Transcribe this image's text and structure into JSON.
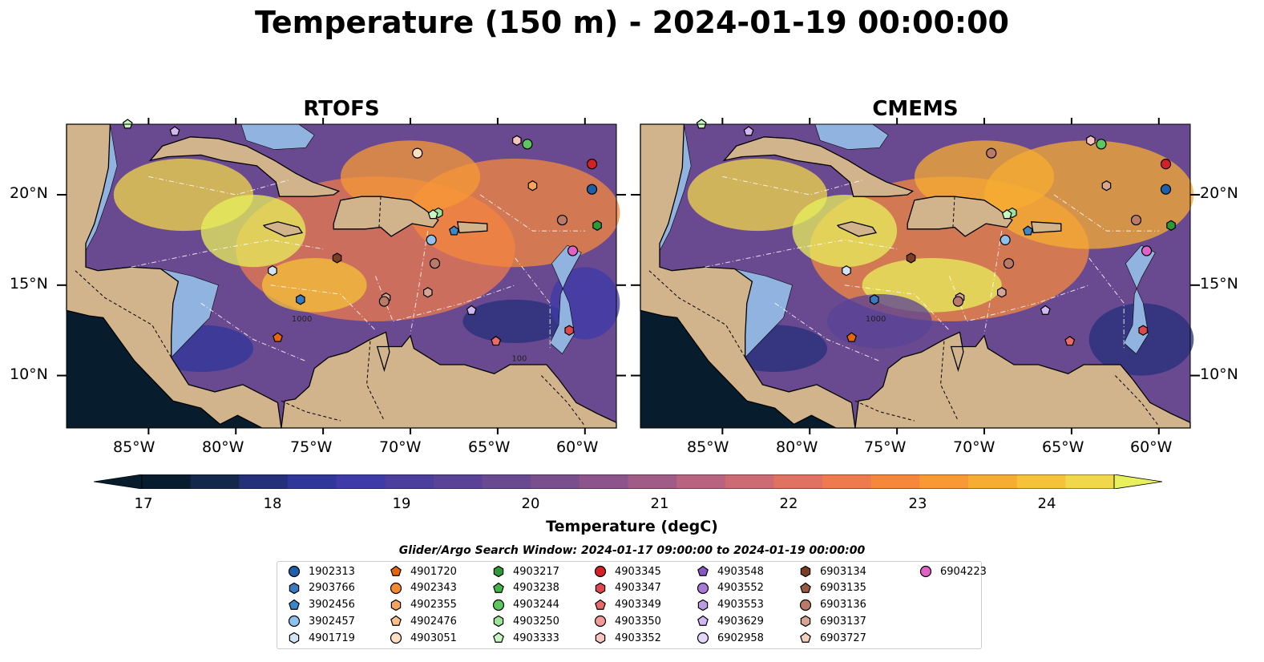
{
  "title": "Temperature (150 m) - 2024-01-19 00:00:00",
  "panels": [
    {
      "title": "RTOFS"
    },
    {
      "title": "CMEMS"
    }
  ],
  "lat_ticks": [
    "20°N",
    "15°N",
    "10°N"
  ],
  "lon_ticks": [
    "85°W",
    "80°W",
    "75°W",
    "70°W",
    "65°W",
    "60°W"
  ],
  "contour_labels": [
    "1000",
    "100"
  ],
  "colorbar": {
    "label": "Temperature (degC)",
    "ticks": [
      "17",
      "18",
      "19",
      "20",
      "21",
      "22",
      "23",
      "24"
    ],
    "range": [
      17,
      24.5
    ],
    "extend": "both",
    "colors": [
      "#071d2e",
      "#13284a",
      "#24307a",
      "#2f379a",
      "#3e3aa8",
      "#4c3e9c",
      "#5a4396",
      "#694a90",
      "#7a4f8e",
      "#8c548a",
      "#a05c86",
      "#b86480",
      "#cc6b73",
      "#e07262",
      "#ee7b4e",
      "#f5883d",
      "#f79a35",
      "#f7ad32",
      "#f5c23a",
      "#f1d84a",
      "#e8f05c"
    ]
  },
  "search_window": "Glider/Argo Search Window: 2024-01-17 09:00:00 to 2024-01-19 00:00:00",
  "map_colors": {
    "land": "#d2b48c",
    "shelf": "#91b3e0"
  },
  "floats": [
    {
      "id": "1902313",
      "marker": "circle",
      "color": "#1f5ea8"
    },
    {
      "id": "2903766",
      "marker": "hexagon",
      "color": "#3a7bbf"
    },
    {
      "id": "3902456",
      "marker": "pentagon",
      "color": "#3d86c8"
    },
    {
      "id": "3902457",
      "marker": "circle",
      "color": "#8ec2ec"
    },
    {
      "id": "4901719",
      "marker": "hexagon",
      "color": "#d0e4f6"
    },
    {
      "id": "4901720",
      "marker": "pentagon",
      "color": "#e8650b"
    },
    {
      "id": "4902343",
      "marker": "circle",
      "color": "#f68a2e"
    },
    {
      "id": "4902355",
      "marker": "hexagon",
      "color": "#f9a45c"
    },
    {
      "id": "4902476",
      "marker": "pentagon",
      "color": "#fbbf8a"
    },
    {
      "id": "4903051",
      "marker": "circle",
      "color": "#fde0c0"
    },
    {
      "id": "4903217",
      "marker": "hexagon",
      "color": "#2c9a35"
    },
    {
      "id": "4903238",
      "marker": "pentagon",
      "color": "#43b34a"
    },
    {
      "id": "4903244",
      "marker": "circle",
      "color": "#5cc75f"
    },
    {
      "id": "4903250",
      "marker": "hexagon",
      "color": "#9ee39a"
    },
    {
      "id": "4903333",
      "marker": "pentagon",
      "color": "#c8f5c2"
    },
    {
      "id": "4903345",
      "marker": "circle",
      "color": "#d42126"
    },
    {
      "id": "4903347",
      "marker": "hexagon",
      "color": "#e0474a"
    },
    {
      "id": "4903349",
      "marker": "pentagon",
      "color": "#ea6a6a"
    },
    {
      "id": "4903350",
      "marker": "circle",
      "color": "#f29a98"
    },
    {
      "id": "4903352",
      "marker": "hexagon",
      "color": "#f8c4c2"
    },
    {
      "id": "4903548",
      "marker": "pentagon",
      "color": "#8a55c4"
    },
    {
      "id": "4903552",
      "marker": "circle",
      "color": "#a77ad6"
    },
    {
      "id": "4903553",
      "marker": "hexagon",
      "color": "#bc9be3"
    },
    {
      "id": "4903629",
      "marker": "pentagon",
      "color": "#d2b8f0"
    },
    {
      "id": "6902958",
      "marker": "circle",
      "color": "#e6d6fa"
    },
    {
      "id": "6903134",
      "marker": "hexagon",
      "color": "#7a3e24"
    },
    {
      "id": "6903135",
      "marker": "pentagon",
      "color": "#9c5a44"
    },
    {
      "id": "6903136",
      "marker": "circle",
      "color": "#b97a68"
    },
    {
      "id": "6903137",
      "marker": "hexagon",
      "color": "#d7a693"
    },
    {
      "id": "6903727",
      "marker": "pentagon",
      "color": "#f2d0c0"
    },
    {
      "id": "6904223",
      "marker": "circle",
      "color": "#e062c6"
    }
  ],
  "float_positions": {
    "RTOFS": [
      {
        "id": "4903333",
        "lon": -86.2,
        "lat": 23.9
      },
      {
        "id": "4903629",
        "lon": -83.5,
        "lat": 23.5
      },
      {
        "id": "4903051",
        "lon": -69.6,
        "lat": 22.3
      },
      {
        "id": "4903352",
        "lon": -63.9,
        "lat": 23.0
      },
      {
        "id": "4903244",
        "lon": -63.3,
        "lat": 22.8
      },
      {
        "id": "4902355",
        "lon": -63.0,
        "lat": 20.5
      },
      {
        "id": "4903345",
        "lon": -59.6,
        "lat": 21.7
      },
      {
        "id": "1902313",
        "lon": -59.6,
        "lat": 20.3
      },
      {
        "id": "4903250",
        "lon": -68.4,
        "lat": 19.0
      },
      {
        "id": "4903333",
        "lon": -68.7,
        "lat": 18.9
      },
      {
        "id": "6903136",
        "lon": -61.3,
        "lat": 18.6
      },
      {
        "id": "4903217",
        "lon": -59.3,
        "lat": 18.3
      },
      {
        "id": "3902457",
        "lon": -68.8,
        "lat": 17.5
      },
      {
        "id": "3902456",
        "lon": -67.5,
        "lat": 18.0
      },
      {
        "id": "6904223",
        "lon": -60.7,
        "lat": 16.9
      },
      {
        "id": "6903134",
        "lon": -74.2,
        "lat": 16.5
      },
      {
        "id": "4901719",
        "lon": -77.9,
        "lat": 15.8
      },
      {
        "id": "6903136",
        "lon": -68.6,
        "lat": 16.2
      },
      {
        "id": "6903137",
        "lon": -71.4,
        "lat": 14.3
      },
      {
        "id": "6903136",
        "lon": -71.5,
        "lat": 14.1
      },
      {
        "id": "6903137",
        "lon": -69.0,
        "lat": 14.6
      },
      {
        "id": "2903766",
        "lon": -76.3,
        "lat": 14.2
      },
      {
        "id": "4903629",
        "lon": -66.5,
        "lat": 13.6
      },
      {
        "id": "4901720",
        "lon": -77.6,
        "lat": 12.1
      },
      {
        "id": "4903349",
        "lon": -65.1,
        "lat": 11.9
      },
      {
        "id": "4903347",
        "lon": -60.9,
        "lat": 12.5
      }
    ],
    "CMEMS": [
      {
        "id": "4903333",
        "lon": -86.2,
        "lat": 23.9
      },
      {
        "id": "4903629",
        "lon": -83.5,
        "lat": 23.5
      },
      {
        "id": "6903136",
        "lon": -69.6,
        "lat": 22.3
      },
      {
        "id": "4903352",
        "lon": -63.9,
        "lat": 23.0
      },
      {
        "id": "4903244",
        "lon": -63.3,
        "lat": 22.8
      },
      {
        "id": "6903137",
        "lon": -63.0,
        "lat": 20.5
      },
      {
        "id": "4903345",
        "lon": -59.6,
        "lat": 21.7
      },
      {
        "id": "1902313",
        "lon": -59.6,
        "lat": 20.3
      },
      {
        "id": "4903250",
        "lon": -68.4,
        "lat": 19.0
      },
      {
        "id": "4903333",
        "lon": -68.7,
        "lat": 18.9
      },
      {
        "id": "6903136",
        "lon": -61.3,
        "lat": 18.6
      },
      {
        "id": "4903217",
        "lon": -59.3,
        "lat": 18.3
      },
      {
        "id": "3902457",
        "lon": -68.8,
        "lat": 17.5
      },
      {
        "id": "3902456",
        "lon": -67.5,
        "lat": 18.0
      },
      {
        "id": "6904223",
        "lon": -60.7,
        "lat": 16.9
      },
      {
        "id": "6903134",
        "lon": -74.2,
        "lat": 16.5
      },
      {
        "id": "4901719",
        "lon": -77.9,
        "lat": 15.8
      },
      {
        "id": "6903136",
        "lon": -68.6,
        "lat": 16.2
      },
      {
        "id": "6903137",
        "lon": -71.4,
        "lat": 14.3
      },
      {
        "id": "6903136",
        "lon": -71.5,
        "lat": 14.1
      },
      {
        "id": "6903137",
        "lon": -69.0,
        "lat": 14.6
      },
      {
        "id": "2903766",
        "lon": -76.3,
        "lat": 14.2
      },
      {
        "id": "4903629",
        "lon": -66.5,
        "lat": 13.6
      },
      {
        "id": "4901720",
        "lon": -77.6,
        "lat": 12.1
      },
      {
        "id": "4903349",
        "lon": -65.1,
        "lat": 11.9
      },
      {
        "id": "4903347",
        "lon": -60.9,
        "lat": 12.5
      }
    ]
  }
}
